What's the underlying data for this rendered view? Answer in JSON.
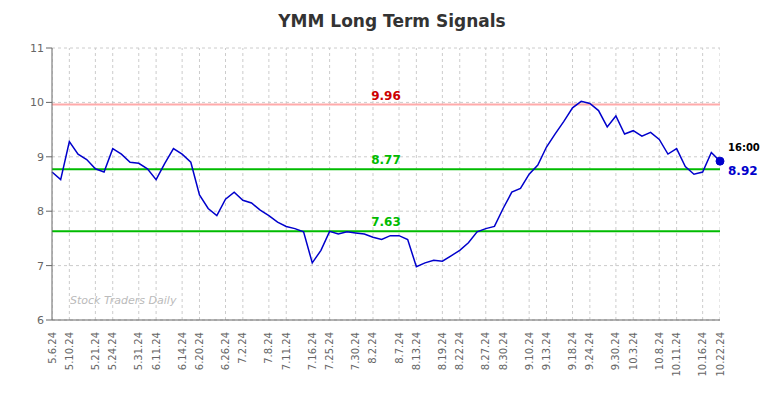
{
  "chart_data": {
    "type": "line",
    "title": "YMM Long Term Signals",
    "categories": [
      "5.6.24",
      null,
      "5.10.24",
      null,
      null,
      "5.21.24",
      null,
      "5.24.24",
      null,
      null,
      "5.31.24",
      null,
      "6.11.24",
      null,
      null,
      "6.14.24",
      null,
      "6.20.24",
      null,
      null,
      "6.26.24",
      null,
      "7.2.24",
      null,
      null,
      "7.8.24",
      null,
      "7.11.24",
      null,
      null,
      "7.16.24",
      null,
      "7.25.24",
      null,
      null,
      "7.30.24",
      null,
      "8.2.24",
      null,
      null,
      "8.7.24",
      null,
      "8.13.24",
      null,
      null,
      "8.19.24",
      null,
      "8.22.24",
      null,
      null,
      "8.27.24",
      null,
      "8.30.24",
      null,
      null,
      "9.10.24",
      null,
      "9.13.24",
      null,
      null,
      "9.18.24",
      null,
      "9.24.24",
      null,
      null,
      "9.30.24",
      null,
      "10.3.24",
      null,
      null,
      "10.8.24",
      null,
      "10.11.24",
      null,
      null,
      "10.16.24",
      null,
      "10.22.24"
    ],
    "values": [
      8.72,
      8.58,
      9.28,
      9.05,
      8.95,
      8.78,
      8.72,
      9.15,
      9.05,
      8.9,
      8.88,
      8.78,
      8.58,
      8.88,
      9.15,
      9.05,
      8.9,
      8.3,
      8.05,
      7.92,
      8.22,
      8.35,
      8.2,
      8.15,
      8.02,
      7.92,
      7.8,
      7.72,
      7.68,
      7.62,
      7.05,
      7.28,
      7.63,
      7.58,
      7.62,
      7.6,
      7.58,
      7.52,
      7.48,
      7.55,
      7.55,
      7.48,
      6.98,
      7.05,
      7.1,
      7.08,
      7.18,
      7.28,
      7.42,
      7.62,
      7.68,
      7.72,
      8.05,
      8.35,
      8.42,
      8.68,
      8.85,
      9.18,
      9.42,
      9.65,
      9.9,
      10.02,
      9.98,
      9.85,
      9.55,
      9.75,
      9.42,
      9.48,
      9.38,
      9.45,
      9.32,
      9.05,
      9.15,
      8.82,
      8.68,
      8.72,
      9.08,
      8.92
    ],
    "color": "#0000cc",
    "marker": "last",
    "ylim": [
      6,
      11
    ],
    "yticks": [
      6,
      7,
      8,
      9,
      10,
      11
    ],
    "grid": true,
    "reference_lines": [
      {
        "value": 9.96,
        "label": "9.96",
        "color": "#ffaaaa",
        "label_color": "#cc0000"
      },
      {
        "value": 8.77,
        "label": "8.77",
        "color": "#00bb00",
        "label_color": "#00bb00"
      },
      {
        "value": 7.63,
        "label": "7.63",
        "color": "#00bb00",
        "label_color": "#00bb00"
      }
    ],
    "annotations": [
      {
        "text": "16:00",
        "color": "#000000"
      },
      {
        "text": "8.92",
        "color": "#0000cc"
      }
    ],
    "watermark": "Stock Traders Daily"
  }
}
